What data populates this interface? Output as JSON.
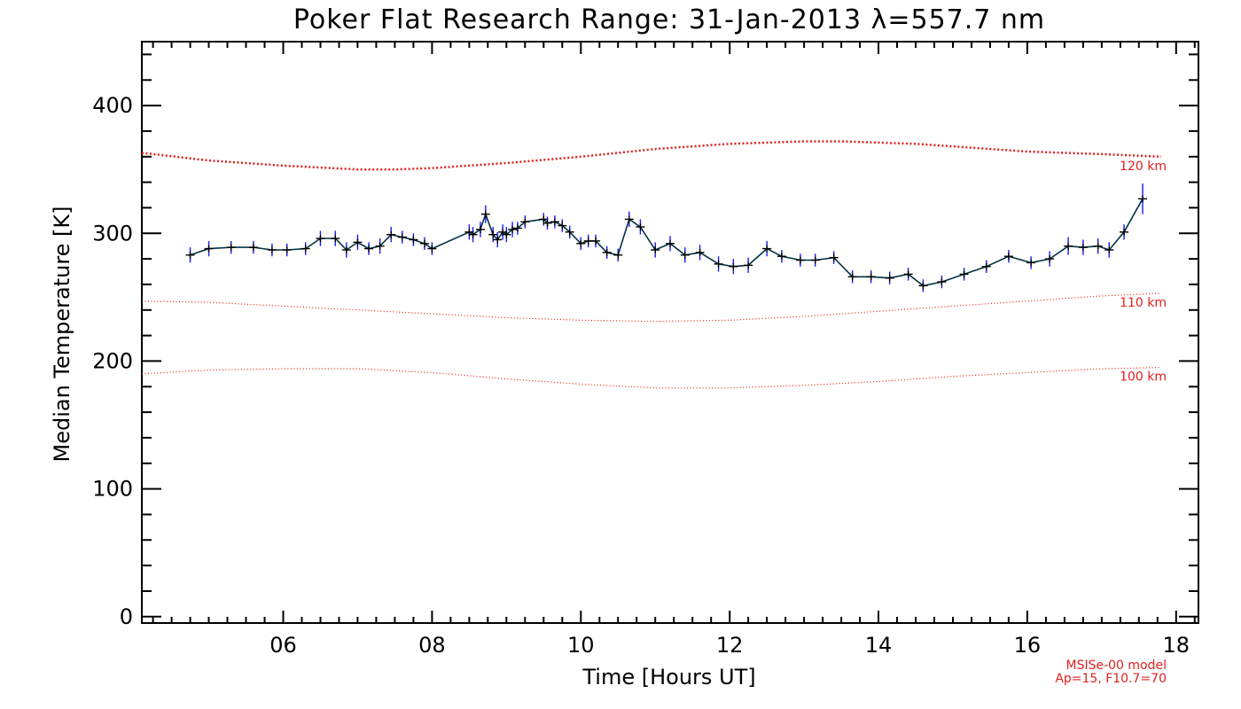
{
  "chart_data": {
    "type": "line",
    "title": "Poker Flat Research Range: 31-Jan-2013 λ=557.7 nm",
    "xlabel": "Time [Hours UT]",
    "ylabel": "Median Temperature [K]",
    "xlim": [
      4.1,
      18.3
    ],
    "ylim": [
      -5,
      450
    ],
    "xticks": [
      6,
      8,
      10,
      12,
      14,
      16,
      18
    ],
    "xtick_labels": [
      "06",
      "08",
      "10",
      "12",
      "14",
      "16",
      "18"
    ],
    "yticks": [
      0,
      100,
      200,
      300,
      400
    ],
    "ytick_labels": [
      "0",
      "100",
      "200",
      "300",
      "400"
    ],
    "grid": false,
    "series": [
      {
        "kind": "measurement",
        "color": "#003344",
        "error_bar_color": "#1a1aff",
        "x": [
          4.75,
          5.0,
          5.3,
          5.6,
          5.85,
          6.05,
          6.3,
          6.5,
          6.7,
          6.85,
          7.0,
          7.15,
          7.3,
          7.45,
          7.6,
          7.75,
          7.9,
          8.0,
          8.5,
          8.55,
          8.65,
          8.72,
          8.82,
          8.88,
          8.95,
          9.0,
          9.08,
          9.15,
          9.25,
          9.5,
          9.55,
          9.65,
          9.75,
          9.85,
          10.0,
          10.1,
          10.2,
          10.35,
          10.5,
          10.65,
          10.8,
          11.0,
          11.2,
          11.4,
          11.6,
          11.85,
          12.05,
          12.25,
          12.5,
          12.7,
          12.95,
          13.15,
          13.4,
          13.65,
          13.9,
          14.15,
          14.4,
          14.6,
          14.85,
          15.15,
          15.45,
          15.75,
          16.05,
          16.3,
          16.55,
          16.75,
          16.95,
          17.1,
          17.3,
          17.55
        ],
        "y": [
          283,
          288,
          289,
          289,
          287,
          287,
          288,
          296,
          296,
          287,
          293,
          288,
          290,
          299,
          297,
          295,
          292,
          288,
          301,
          299,
          303,
          315,
          299,
          295,
          301,
          299,
          303,
          304,
          309,
          311,
          308,
          309,
          306,
          301,
          292,
          294,
          294,
          285,
          283,
          311,
          305,
          287,
          292,
          283,
          285,
          276,
          274,
          275,
          288,
          282,
          279,
          279,
          281,
          266,
          266,
          265,
          268,
          259,
          262,
          268,
          274,
          282,
          277,
          280,
          290,
          289,
          290,
          287,
          301,
          327
        ],
        "error": [
          6,
          6,
          5,
          5,
          5,
          5,
          5,
          6,
          6,
          6,
          6,
          5,
          6,
          6,
          5,
          5,
          5,
          5,
          6,
          6,
          6,
          7,
          6,
          6,
          6,
          6,
          6,
          5,
          5,
          5,
          5,
          5,
          5,
          5,
          5,
          5,
          5,
          5,
          5,
          6,
          6,
          6,
          6,
          6,
          6,
          6,
          6,
          6,
          6,
          5,
          5,
          5,
          5,
          5,
          5,
          5,
          5,
          5,
          5,
          5,
          5,
          5,
          5,
          6,
          7,
          6,
          6,
          6,
          6,
          12
        ]
      },
      {
        "name": "120 km",
        "kind": "model",
        "color": "#e02020",
        "style": "dotted-heavy",
        "x": [
          4.1,
          5.0,
          6.0,
          7.0,
          7.5,
          8.0,
          9.0,
          10.0,
          11.0,
          12.0,
          12.5,
          13.0,
          13.5,
          14.0,
          14.5,
          15.0,
          16.0,
          17.0,
          17.8
        ],
        "y": [
          363,
          357,
          353,
          350,
          350,
          351,
          355,
          360,
          366,
          370,
          371,
          372,
          372,
          371,
          370,
          368,
          364,
          362,
          360
        ]
      },
      {
        "name": "110 km",
        "kind": "model",
        "color": "#e02020",
        "style": "dotted",
        "x": [
          4.1,
          5.0,
          6.0,
          7.0,
          8.0,
          9.0,
          10.0,
          11.0,
          12.0,
          13.0,
          14.0,
          15.0,
          16.0,
          17.0,
          17.8
        ],
        "y": [
          247,
          246,
          243,
          240,
          237,
          234,
          232,
          231,
          232,
          235,
          239,
          243,
          247,
          251,
          253
        ]
      },
      {
        "name": "100 km",
        "kind": "model",
        "color": "#e02020",
        "style": "dotted",
        "x": [
          4.1,
          5.0,
          6.0,
          7.0,
          8.0,
          9.0,
          10.0,
          11.0,
          12.0,
          13.0,
          14.0,
          15.0,
          16.0,
          17.0,
          17.8
        ],
        "y": [
          190,
          193,
          194,
          194,
          191,
          186,
          182,
          179,
          179,
          181,
          184,
          188,
          191,
          194,
          195
        ]
      }
    ],
    "model_labels": [
      "120 km",
      "110 km",
      "100 km"
    ],
    "annotation": [
      "MSISe-00 model",
      "Ap=15, F10.7=70"
    ]
  }
}
